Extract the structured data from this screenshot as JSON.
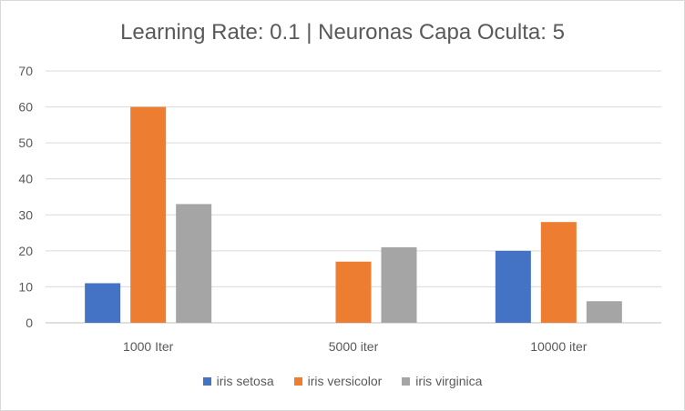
{
  "chart_data": {
    "type": "bar",
    "title": "Learning Rate: 0.1 | Neuronas Capa Oculta: 5",
    "categories": [
      "1000 Iter",
      "5000 iter",
      "10000 iter"
    ],
    "series": [
      {
        "name": "iris setosa",
        "color": "#4472c4",
        "values": [
          11,
          0,
          20
        ]
      },
      {
        "name": "iris versicolor",
        "color": "#ed7d31",
        "values": [
          60,
          17,
          28
        ]
      },
      {
        "name": "iris virginica",
        "color": "#a5a5a5",
        "values": [
          33,
          21,
          6
        ]
      }
    ],
    "ylim": [
      0,
      70
    ],
    "yticks": [
      "0",
      "10",
      "20",
      "30",
      "40",
      "50",
      "60",
      "70"
    ],
    "grid": true,
    "legend_position": "bottom"
  }
}
